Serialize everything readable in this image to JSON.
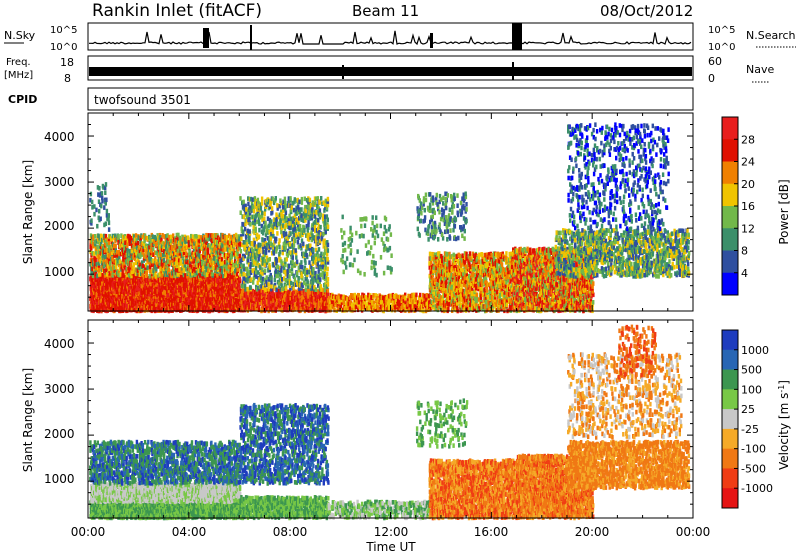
{
  "header": {
    "station": "Rankin Inlet (fitACF)",
    "beam": "Beam 11",
    "date": "08/Oct/2012"
  },
  "top_panels": {
    "nsky_label": "N.Sky",
    "nsky_ticks": [
      "10^5",
      "10^0"
    ],
    "nsearch_label": "N.Search",
    "nsearch_ticks": [
      "10^5",
      "10^0"
    ],
    "freq_label": "Freq.",
    "freq_unit": "[MHz]",
    "freq_ticks": [
      "18",
      "8"
    ],
    "nave_label": "Nave",
    "nave_ticks": [
      "60",
      "0"
    ],
    "cpid_label": "CPID",
    "cpid_value": "twofsound 3501"
  },
  "chart_data": [
    {
      "type": "heatmap",
      "name": "power",
      "xlabel": "",
      "ylabel": "Slant Range [km]",
      "ylim": [
        200,
        4500
      ],
      "yticks": [
        "1000",
        "2000",
        "3000",
        "4000"
      ],
      "colorbar_label": "Power [dB]",
      "colorbar_ticks": [
        "4",
        "8",
        "12",
        "16",
        "20",
        "24",
        "28"
      ],
      "colors": [
        "#0000ff",
        "#2f4f9f",
        "#3b8f6a",
        "#72b84a",
        "#f0c400",
        "#f08000",
        "#e01000",
        "#e81e1e"
      ]
    },
    {
      "type": "heatmap",
      "name": "velocity",
      "xlabel": "Time UT",
      "ylabel": "Slant Range [km]",
      "ylim": [
        200,
        4500
      ],
      "yticks": [
        "1000",
        "2000",
        "3000",
        "4000"
      ],
      "xticks": [
        "00:00",
        "04:00",
        "08:00",
        "12:00",
        "16:00",
        "20:00",
        "00:00"
      ],
      "colorbar_label": "Velocity [m s-1]",
      "colorbar_ticks": [
        "1000",
        "500",
        "100",
        "25",
        "-25",
        "-100",
        "-500",
        "-1000"
      ],
      "colors": [
        "#1e3cbe",
        "#2866b4",
        "#3c9650",
        "#78c846",
        "#c8c8c8",
        "#f5aa28",
        "#f07814",
        "#f03c14",
        "#e61414"
      ]
    }
  ]
}
